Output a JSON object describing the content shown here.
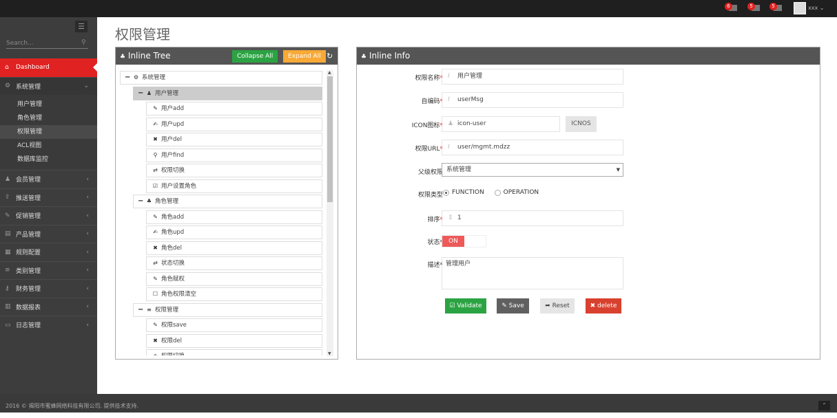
{
  "topbar": {
    "notifications": [
      {
        "count": "6",
        "icon": "bell-icon"
      },
      {
        "count": "5",
        "icon": "envelope-icon"
      },
      {
        "count": "5",
        "icon": "calendar-icon"
      }
    ],
    "username": "xxx"
  },
  "sidebar": {
    "search_placeholder": "Search...",
    "items": [
      {
        "label": "Dashboard",
        "icon": "home-icon",
        "active": true
      },
      {
        "label": "系统管理",
        "icon": "cogs-icon",
        "open": true,
        "children": [
          {
            "label": "用户管理"
          },
          {
            "label": "角色管理"
          },
          {
            "label": "权限管理",
            "active": true
          },
          {
            "label": "ACL视图"
          },
          {
            "label": "数据库监控"
          }
        ]
      },
      {
        "label": "会员管理",
        "icon": "user-icon"
      },
      {
        "label": "推送管理",
        "icon": "share-icon"
      },
      {
        "label": "促销管理",
        "icon": "pencil-icon"
      },
      {
        "label": "产品管理",
        "icon": "archive-icon"
      },
      {
        "label": "规则配置",
        "icon": "list-alt-icon"
      },
      {
        "label": "类别管理",
        "icon": "bars-icon"
      },
      {
        "label": "财务管理",
        "icon": "key-icon"
      },
      {
        "label": "数据报表",
        "icon": "bar-chart-icon"
      },
      {
        "label": "日志管理",
        "icon": "credit-card-icon"
      }
    ]
  },
  "page": {
    "title": "权限管理"
  },
  "tree_panel": {
    "title": "Inline Tree",
    "collapse_label": "Collapse All",
    "expand_label": "Expand All",
    "colors": {
      "collapse": "#2ca343",
      "expand": "#f8a936"
    },
    "nodes": [
      {
        "level": 0,
        "label": "系统管理",
        "icon": "cogs-icon",
        "glyph": "⚙",
        "toggle": "−"
      },
      {
        "level": 1,
        "label": "用户管理",
        "icon": "user-icon",
        "glyph": "♟",
        "toggle": "−",
        "selected": true
      },
      {
        "level": 2,
        "label": "用户add",
        "icon": "pencil-icon",
        "glyph": "✎"
      },
      {
        "level": 2,
        "label": "用户upd",
        "icon": "edit-icon",
        "glyph": "✍"
      },
      {
        "level": 2,
        "label": "用户del",
        "icon": "times-icon",
        "glyph": "✖"
      },
      {
        "level": 2,
        "label": "用户find",
        "icon": "search-icon",
        "glyph": "⚲"
      },
      {
        "level": 2,
        "label": "权限切换",
        "icon": "retweet-icon",
        "glyph": "⇄"
      },
      {
        "level": 2,
        "label": "用户设置角色",
        "icon": "check-square-icon",
        "glyph": "☑"
      },
      {
        "level": 1,
        "label": "角色管理",
        "icon": "sitemap-icon",
        "glyph": "♣",
        "toggle": "−"
      },
      {
        "level": 2,
        "label": "角色add",
        "icon": "pencil-icon",
        "glyph": "✎"
      },
      {
        "level": 2,
        "label": "角色upd",
        "icon": "edit-icon",
        "glyph": "✍"
      },
      {
        "level": 2,
        "label": "角色del",
        "icon": "times-icon",
        "glyph": "✖"
      },
      {
        "level": 2,
        "label": "状态切换",
        "icon": "retweet-icon",
        "glyph": "⇄"
      },
      {
        "level": 2,
        "label": "角色赋权",
        "icon": "pencil-icon",
        "glyph": "✎"
      },
      {
        "level": 2,
        "label": "角色权限清空",
        "icon": "square-icon",
        "glyph": "☐"
      },
      {
        "level": 1,
        "label": "权限管理",
        "icon": "bars-icon",
        "glyph": "≡",
        "toggle": "−"
      },
      {
        "level": 2,
        "label": "权限save",
        "icon": "pencil-icon",
        "glyph": "✎"
      },
      {
        "level": 2,
        "label": "权限del",
        "icon": "times-icon",
        "glyph": "✖"
      },
      {
        "level": 2,
        "label": "权限切换",
        "icon": "edit-icon",
        "glyph": "✍"
      }
    ]
  },
  "info_panel": {
    "title": "Inline Info",
    "fields": {
      "name": {
        "label": "权限名称",
        "value": "用户管理"
      },
      "code": {
        "label": "自编码",
        "value": "userMsg"
      },
      "icon": {
        "label": "ICON图标",
        "value": "icon-user",
        "button": "ICNOS"
      },
      "url": {
        "label": "权限URL",
        "value": "user/mgmt.mdzz"
      },
      "parent": {
        "label": "父级权限",
        "value": "系统管理"
      },
      "type": {
        "label": "权限类型",
        "options": [
          "FUNCTION",
          "OPERATION"
        ],
        "selected": "FUNCTION"
      },
      "order": {
        "label": "排序",
        "value": "1"
      },
      "status": {
        "label": "状态*",
        "value": "ON"
      },
      "desc": {
        "label": "描述*",
        "value": "管理用户"
      }
    },
    "required_mark": "*",
    "buttons": {
      "validate": "Validate",
      "save": "Save",
      "reset": "Reset",
      "delete": "delete"
    },
    "colors": {
      "validate": "#2ca343",
      "save": "#606060",
      "reset": "#e5e5e5",
      "delete": "#d9412f",
      "switch_on": "#ee5a5a"
    }
  },
  "footer": {
    "text": "2016 © 揭阳市蜜蜂网络科技有限公司. 提供技术支持."
  }
}
